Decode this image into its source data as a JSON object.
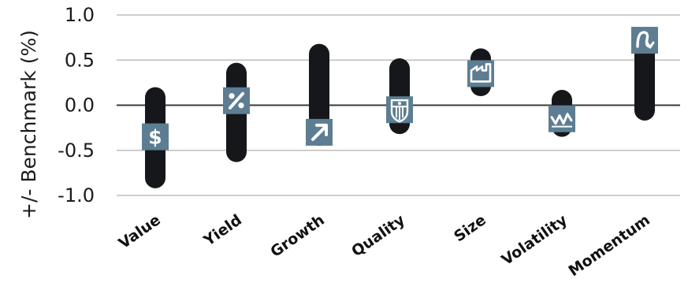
{
  "chart_data": {
    "type": "range-bar",
    "ylabel": "+/- Benchmark (%)",
    "ylim": [
      -1.0,
      1.0
    ],
    "yticks": [
      1.0,
      0.5,
      0.0,
      -0.5,
      -1.0
    ],
    "ytick_labels": [
      "1.0",
      "0.5",
      "0.0",
      "-0.5",
      "-1.0"
    ],
    "grid": true,
    "categories": [
      "Value",
      "Yield",
      "Growth",
      "Quality",
      "Size",
      "Volatility",
      "Momentum"
    ],
    "ranges": [
      {
        "low": -0.92,
        "high": 0.2
      },
      {
        "low": -0.63,
        "high": 0.47
      },
      {
        "low": -0.45,
        "high": 0.68
      },
      {
        "low": -0.32,
        "high": 0.52
      },
      {
        "low": 0.1,
        "high": 0.63
      },
      {
        "low": -0.35,
        "high": 0.17
      },
      {
        "low": -0.17,
        "high": 0.76
      }
    ],
    "markers": [
      -0.35,
      0.05,
      -0.3,
      -0.05,
      0.35,
      -0.15,
      0.72
    ],
    "marker_icons": [
      "dollar-icon",
      "percent-icon",
      "growth-arrow-icon",
      "quality-badge-icon",
      "factory-icon",
      "volatility-zigzag-icon",
      "momentum-icon"
    ],
    "colors": {
      "bar": "#16171b",
      "marker": "#5d7d92",
      "grid": "#bdbdbd",
      "zero_line": "#3a3a3a",
      "text": "#1b1b1b"
    }
  }
}
